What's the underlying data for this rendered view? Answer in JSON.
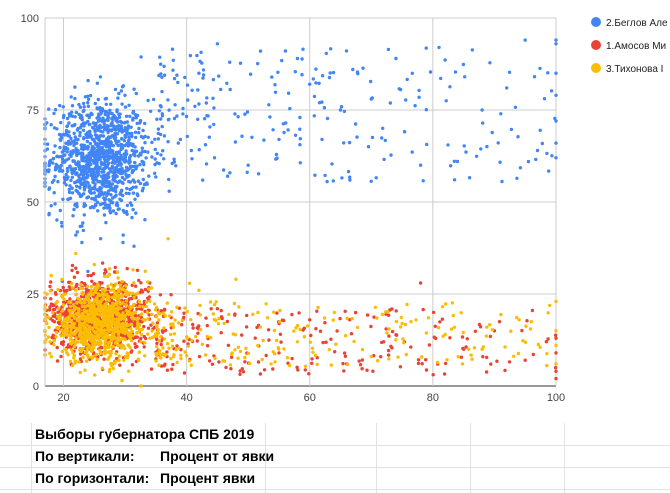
{
  "chart_data": {
    "type": "scatter",
    "title": "",
    "xlabel": "",
    "ylabel": "",
    "xlim": [
      17,
      100
    ],
    "ylim": [
      0,
      100
    ],
    "x_ticks": [
      20,
      40,
      60,
      80,
      100
    ],
    "y_ticks": [
      0,
      25,
      50,
      75,
      100
    ],
    "grid": true,
    "legend_position": "right",
    "series": [
      {
        "name": "2.Беглов Алe",
        "color": "#4285f4",
        "cluster": {
          "x_center": 26,
          "y_center": 62,
          "x_spread": 4,
          "y_spread": 8
        },
        "tail": {
          "x_range": [
            35,
            100
          ],
          "y_range": [
            55,
            92
          ]
        },
        "points": [
          [
            18,
            49
          ],
          [
            20,
            73
          ],
          [
            22,
            41
          ],
          [
            23,
            39
          ],
          [
            24,
            83
          ],
          [
            26,
            84
          ],
          [
            30,
            79
          ],
          [
            36,
            80
          ],
          [
            39,
            67
          ],
          [
            42,
            85
          ],
          [
            45,
            93
          ],
          [
            47,
            88
          ],
          [
            50,
            60
          ],
          [
            52,
            91
          ],
          [
            55,
            67
          ],
          [
            58,
            89
          ],
          [
            60,
            82
          ],
          [
            62,
            67
          ],
          [
            65,
            75
          ],
          [
            67,
            86
          ],
          [
            70,
            78
          ],
          [
            74,
            89
          ],
          [
            78,
            60
          ],
          [
            81,
            92
          ],
          [
            84,
            61
          ],
          [
            88,
            75
          ],
          [
            92,
            81
          ],
          [
            95,
            94
          ],
          [
            97,
            64
          ],
          [
            100,
            94
          ],
          [
            100,
            85
          ],
          [
            100,
            79
          ],
          [
            100,
            72
          ],
          [
            100,
            66
          ],
          [
            100,
            62
          ],
          [
            100,
            93
          ]
        ]
      },
      {
        "name": "1.Амосов Ми",
        "color": "#ea4335",
        "cluster": {
          "x_center": 26,
          "y_center": 19,
          "x_spread": 4,
          "y_spread": 5
        },
        "tail": {
          "x_range": [
            35,
            100
          ],
          "y_range": [
            3,
            21
          ]
        },
        "points": [
          [
            18,
            26
          ],
          [
            20,
            12
          ],
          [
            22,
            32
          ],
          [
            24,
            30
          ],
          [
            28,
            6
          ],
          [
            34,
            28
          ],
          [
            45,
            21
          ],
          [
            55,
            9
          ],
          [
            60,
            18
          ],
          [
            66,
            6
          ],
          [
            72,
            12
          ],
          [
            78,
            28
          ],
          [
            85,
            10
          ],
          [
            90,
            15
          ],
          [
            95,
            7
          ],
          [
            100,
            4
          ],
          [
            100,
            9
          ],
          [
            100,
            13
          ],
          [
            100,
            2
          ]
        ]
      },
      {
        "name": "3.Тихонова I",
        "color": "#fbbc04",
        "cluster": {
          "x_center": 26,
          "y_center": 17,
          "x_spread": 4,
          "y_spread": 5
        },
        "tail": {
          "x_range": [
            35,
            100
          ],
          "y_range": [
            5,
            23
          ]
        },
        "points": [
          [
            18,
            30
          ],
          [
            20,
            22
          ],
          [
            22,
            36
          ],
          [
            25,
            33
          ],
          [
            37,
            40
          ],
          [
            42,
            26
          ],
          [
            48,
            29
          ],
          [
            52,
            16
          ],
          [
            58,
            12
          ],
          [
            64,
            20
          ],
          [
            70,
            8
          ],
          [
            75,
            17
          ],
          [
            82,
            14
          ],
          [
            88,
            10
          ],
          [
            94,
            18
          ],
          [
            100,
            23
          ],
          [
            100,
            6
          ],
          [
            100,
            15
          ],
          [
            100,
            11
          ]
        ]
      }
    ]
  },
  "sheet": {
    "row1": "Выборы губернатора СПБ 2019",
    "row2_label": "По вертикали:",
    "row2_value": "Процент от явки",
    "row3_label": "По горизонтали:",
    "row3_value": "Процент явки"
  }
}
